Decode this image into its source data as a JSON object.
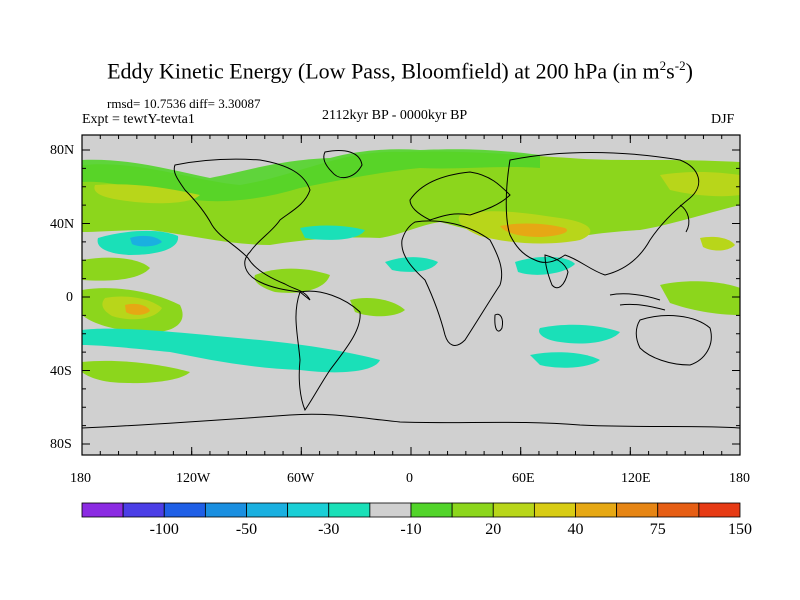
{
  "title": {
    "main": "Eddy Kinetic Energy (Low Pass, Bloomfield) at 200 hPa (in m",
    "sup1": "2",
    "mid": "s",
    "sup2": "-2",
    "end": ")"
  },
  "stats": "rmsd= 10.7536 diff= 3.30087",
  "experiment": "Expt = tewtY-tevta1",
  "period": "2112kyr BP - 0000kyr BP",
  "season": "DJF",
  "lat_ticks": [
    "80N",
    "40N",
    "0",
    "40S",
    "80S"
  ],
  "lon_ticks": [
    "180",
    "120W",
    "60W",
    "0",
    "60E",
    "120E",
    "180"
  ],
  "colorbar": {
    "colors": [
      "#8b2be2",
      "#4b3ee6",
      "#1f5fe6",
      "#1a8fe0",
      "#1ab0e0",
      "#1acfd6",
      "#1ae0b8",
      "#d0d0d0",
      "#52d42a",
      "#8cd61c",
      "#b8d61a",
      "#d8cc14",
      "#e6a814",
      "#e68514",
      "#e65e14",
      "#e63a14"
    ],
    "labels": [
      "-100",
      "-50",
      "-30",
      "-10",
      "20",
      "40",
      "75",
      "150"
    ]
  },
  "colors": {
    "background": "#d0d0d0",
    "green": "#8cd61c",
    "lime": "#52d42a",
    "yellow": "#b8d61a",
    "orange": "#e6a814",
    "cyan": "#1ae0b8",
    "blue": "#1ab0e0"
  }
}
